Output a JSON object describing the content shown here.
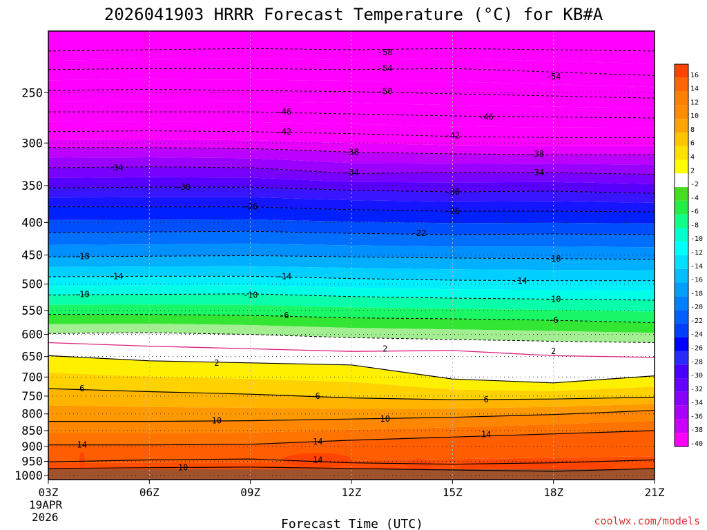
{
  "chart_data": {
    "type": "heatmap",
    "title": "2026041903 HRRR Forecast Temperature (°C) for KB#A",
    "xlabel": "Forecast Time (UTC)",
    "ylabel": "",
    "x_ticks": [
      {
        "hour": 0,
        "label": "03Z"
      },
      {
        "hour": 3,
        "label": "06Z"
      },
      {
        "hour": 6,
        "label": "09Z"
      },
      {
        "hour": 9,
        "label": "12Z"
      },
      {
        "hour": 12,
        "label": "15Z"
      },
      {
        "hour": 15,
        "label": "18Z"
      },
      {
        "hour": 18,
        "label": "21Z"
      }
    ],
    "x_start_date": [
      "19APR",
      "2026"
    ],
    "xlim": [
      0,
      18
    ],
    "ylim": [
      1000,
      200
    ],
    "y_ticks": [
      250,
      300,
      350,
      400,
      450,
      500,
      550,
      600,
      650,
      700,
      750,
      800,
      850,
      900,
      950,
      1000
    ],
    "colorbar_labels": [
      16,
      14,
      12,
      10,
      8,
      6,
      4,
      2,
      -2,
      -4,
      -6,
      -8,
      -10,
      -12,
      -14,
      -16,
      -18,
      -20,
      -22,
      -24,
      -26,
      -28,
      -30,
      -32,
      -34,
      -36,
      -38,
      -40
    ],
    "colorbar_colors": [
      "#ff4400",
      "#ff6600",
      "#ff7f00",
      "#ff8c00",
      "#ffa500",
      "#ffc400",
      "#ffe000",
      "#ffff00",
      "#ffffff",
      "#44dd22",
      "#22ee44",
      "#11ff88",
      "#00ffcc",
      "#00ffff",
      "#00dfff",
      "#00bfff",
      "#009fff",
      "#007fff",
      "#005fff",
      "#003fff",
      "#0000ff",
      "#2a2aff",
      "#4800ff",
      "#6600ff",
      "#8800ff",
      "#aa00ff",
      "#cc00ff",
      "#ff00ff"
    ],
    "contours_neg": [
      {
        "value": -58,
        "pressures": [
          215,
          214,
          213,
          214,
          213,
          214,
          215
        ]
      },
      {
        "value": -54,
        "pressures": [
          230,
          229,
          229,
          230,
          229,
          232,
          235
        ]
      },
      {
        "value": -50,
        "pressures": [
          248,
          247,
          248,
          249,
          251,
          253,
          255
        ]
      },
      {
        "value": -46,
        "pressures": [
          268,
          268,
          268,
          270,
          272,
          273,
          274
        ]
      },
      {
        "value": -42,
        "pressures": [
          288,
          287,
          288,
          290,
          293,
          294,
          294
        ]
      },
      {
        "value": -38,
        "pressures": [
          305,
          305,
          306,
          310,
          312,
          313,
          313
        ]
      },
      {
        "value": -34,
        "pressures": [
          328,
          327,
          328,
          335,
          334,
          334,
          336
        ]
      },
      {
        "value": -30,
        "pressures": [
          353,
          352,
          352,
          356,
          358,
          357,
          360
        ]
      },
      {
        "value": -26,
        "pressures": [
          378,
          378,
          378,
          382,
          384,
          384,
          385
        ]
      },
      {
        "value": -22,
        "pressures": [
          415,
          414,
          413,
          416,
          418,
          417,
          418
        ]
      },
      {
        "value": -18,
        "pressures": [
          453,
          452,
          451,
          453,
          455,
          456,
          457
        ]
      },
      {
        "value": -14,
        "pressures": [
          487,
          486,
          486,
          490,
          493,
          494,
          494
        ]
      },
      {
        "value": -10,
        "pressures": [
          520,
          519,
          518,
          523,
          526,
          528,
          530
        ]
      },
      {
        "value": -6,
        "pressures": [
          558,
          558,
          560,
          565,
          567,
          570,
          575
        ]
      },
      {
        "value": -2,
        "pressures": [
          598,
          596,
          600,
          607,
          611,
          615,
          618
        ]
      }
    ],
    "contours_zero": [
      {
        "value": 0,
        "pressures": [
          618,
          626,
          632,
          638,
          636,
          648,
          652
        ]
      }
    ],
    "contours_pos": [
      {
        "value": 2,
        "pressures": [
          648,
          660,
          665,
          670,
          705,
          715,
          697
        ]
      },
      {
        "value": 6,
        "pressures": [
          730,
          738,
          745,
          755,
          760,
          758,
          753
        ]
      },
      {
        "value": 10,
        "pressures": [
          822,
          822,
          820,
          815,
          810,
          802,
          790
        ]
      },
      {
        "value": 14,
        "pressures": [
          895,
          895,
          893,
          880,
          870,
          860,
          850
        ]
      },
      {
        "value": 14,
        "pressures": [
          952,
          945,
          942,
          955,
          960,
          955,
          945
        ]
      },
      {
        "value": 10,
        "pressures": [
          975,
          972,
          970,
          975,
          980,
          985,
          975
        ]
      }
    ],
    "contour_labels": [
      {
        "text": "-58",
        "hour": 10.0,
        "p": 216
      },
      {
        "text": "-54",
        "hour": 10.0,
        "p": 229
      },
      {
        "text": "-54",
        "hour": 15.0,
        "p": 236
      },
      {
        "text": "-50",
        "hour": 10.0,
        "p": 249
      },
      {
        "text": "-46",
        "hour": 7.0,
        "p": 268
      },
      {
        "text": "-46",
        "hour": 13.0,
        "p": 273
      },
      {
        "text": "-42",
        "hour": 7.0,
        "p": 288
      },
      {
        "text": "-42",
        "hour": 12.0,
        "p": 292
      },
      {
        "text": "-38",
        "hour": 9.0,
        "p": 310
      },
      {
        "text": "-38",
        "hour": 14.5,
        "p": 312
      },
      {
        "text": "-34",
        "hour": 2.0,
        "p": 328
      },
      {
        "text": "-34",
        "hour": 9.0,
        "p": 334
      },
      {
        "text": "-34",
        "hour": 14.5,
        "p": 334
      },
      {
        "text": "-30",
        "hour": 4.0,
        "p": 352
      },
      {
        "text": "-30",
        "hour": 12.0,
        "p": 358
      },
      {
        "text": "-26",
        "hour": 6.0,
        "p": 378
      },
      {
        "text": "-26",
        "hour": 12.0,
        "p": 384
      },
      {
        "text": "-22",
        "hour": 11.0,
        "p": 416
      },
      {
        "text": "-18",
        "hour": 1.0,
        "p": 452
      },
      {
        "text": "-18",
        "hour": 15.0,
        "p": 456
      },
      {
        "text": "-14",
        "hour": 2.0,
        "p": 486
      },
      {
        "text": "-14",
        "hour": 7.0,
        "p": 486
      },
      {
        "text": "-14",
        "hour": 14.0,
        "p": 494
      },
      {
        "text": "-10",
        "hour": 1.0,
        "p": 519
      },
      {
        "text": "-10",
        "hour": 6.0,
        "p": 520
      },
      {
        "text": "-10",
        "hour": 15.0,
        "p": 528
      },
      {
        "text": "-6",
        "hour": 7.0,
        "p": 560
      },
      {
        "text": "-6",
        "hour": 15.0,
        "p": 570
      },
      {
        "text": "2",
        "hour": 10.0,
        "p": 632
      },
      {
        "text": "2",
        "hour": 15.0,
        "p": 638
      },
      {
        "text": "2",
        "hour": 5.0,
        "p": 665
      },
      {
        "text": "6",
        "hour": 1.0,
        "p": 730
      },
      {
        "text": "6",
        "hour": 8.0,
        "p": 750
      },
      {
        "text": "6",
        "hour": 13.0,
        "p": 760
      },
      {
        "text": "10",
        "hour": 5.0,
        "p": 820
      },
      {
        "text": "10",
        "hour": 10.0,
        "p": 815
      },
      {
        "text": "14",
        "hour": 1.0,
        "p": 895
      },
      {
        "text": "14",
        "hour": 8.0,
        "p": 885
      },
      {
        "text": "14",
        "hour": 13.0,
        "p": 862
      },
      {
        "text": "14",
        "hour": 8.0,
        "p": 945
      },
      {
        "text": "10",
        "hour": 4.0,
        "p": 972
      }
    ]
  },
  "credit": "coolwx.com/models"
}
